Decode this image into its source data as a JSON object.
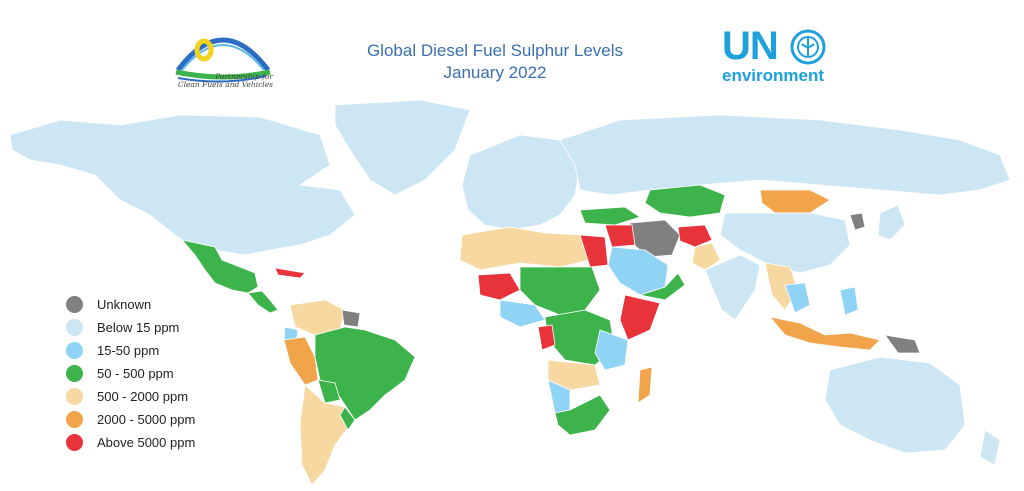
{
  "header": {
    "title_line1": "Global Diesel Fuel Sulphur Levels",
    "title_line2": "January 2022"
  },
  "logos": {
    "pcfv_line1": "Partnership for",
    "pcfv_line2": "Clean Fuels and Vehicles",
    "un": "UN",
    "environment": "environment"
  },
  "legend": [
    {
      "label": "Unknown",
      "color": "#808080"
    },
    {
      "label": "Below 15 ppm",
      "color": "#cde6f4"
    },
    {
      "label": "15-50 ppm",
      "color": "#8fd3f5"
    },
    {
      "label": "50 - 500 ppm",
      "color": "#3cb44b"
    },
    {
      "label": "500 - 2000 ppm",
      "color": "#f6d8a0"
    },
    {
      "label": "2000 - 5000 ppm",
      "color": "#f2a44a"
    },
    {
      "label": "Above 5000 ppm",
      "color": "#e8333a"
    }
  ]
}
